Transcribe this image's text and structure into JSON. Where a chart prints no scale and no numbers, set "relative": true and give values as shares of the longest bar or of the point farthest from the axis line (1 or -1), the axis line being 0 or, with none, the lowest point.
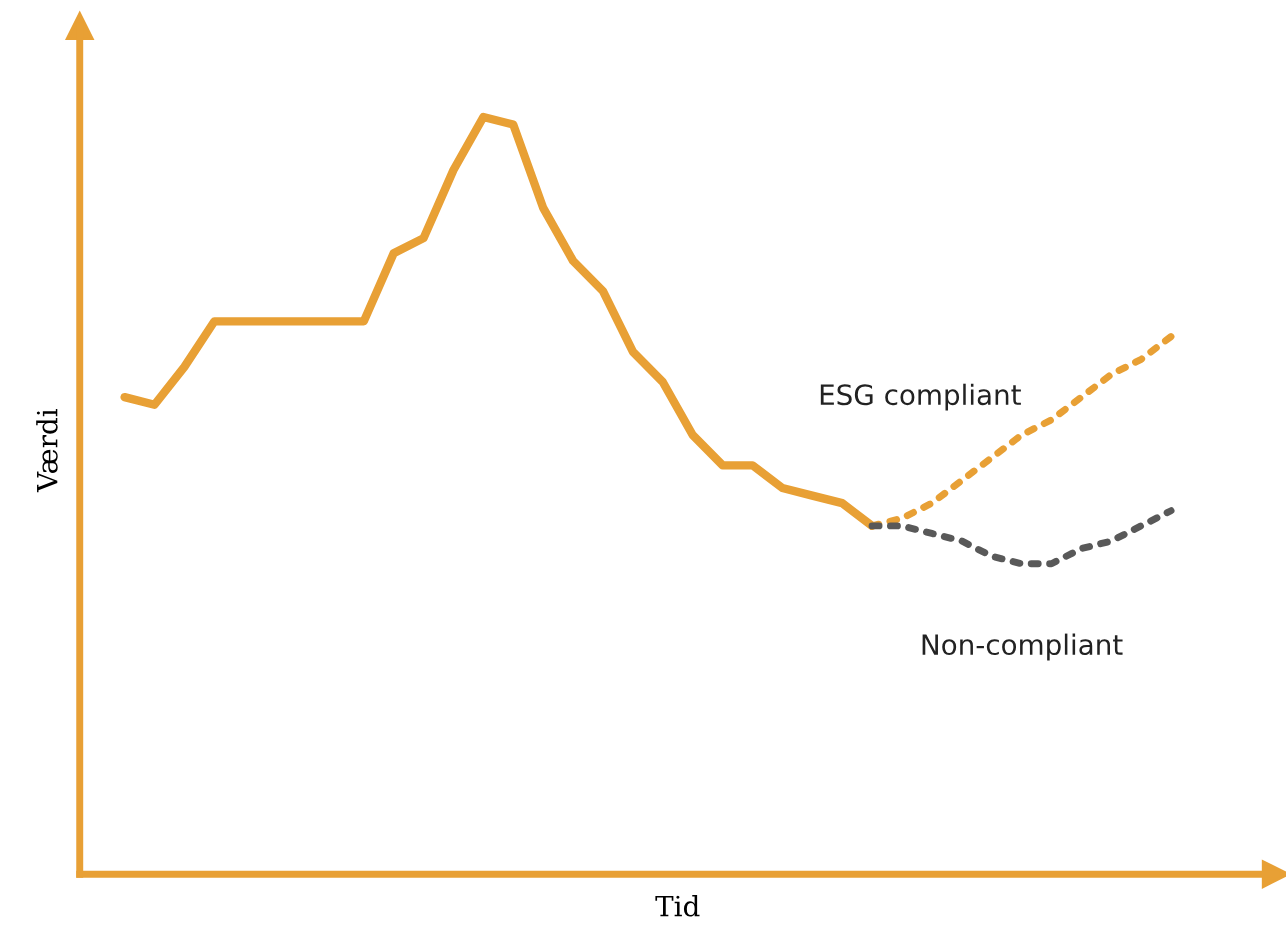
{
  "chart_data": {
    "type": "line",
    "relative": true,
    "xlabel": "Tid",
    "ylabel": "Værdi",
    "categories": [
      null,
      null,
      null,
      null,
      null,
      null,
      null,
      null,
      null,
      null,
      null,
      null,
      null,
      null,
      null,
      null,
      null,
      null,
      null,
      null,
      null,
      null,
      null,
      null,
      null,
      null,
      null,
      null,
      null,
      null,
      null,
      null,
      null,
      null,
      null,
      null
    ],
    "series": [
      {
        "color": "#e8a035",
        "line_style": "solid",
        "values": [
          0.63,
          0.62,
          0.67,
          0.73,
          0.73,
          0.73,
          0.73,
          0.73,
          0.73,
          0.82,
          0.84,
          0.93,
          1.0,
          0.99,
          0.88,
          0.81,
          0.77,
          0.69,
          0.65,
          0.58,
          0.54,
          0.54,
          0.51,
          0.5,
          0.49,
          0.46,
          null,
          null,
          null,
          null,
          null,
          null,
          null,
          null,
          null,
          null
        ]
      },
      {
        "name": "ESG compliant",
        "color": "#e8a035",
        "line_style": "dotted",
        "values": [
          null,
          null,
          null,
          null,
          null,
          null,
          null,
          null,
          null,
          null,
          null,
          null,
          null,
          null,
          null,
          null,
          null,
          null,
          null,
          null,
          null,
          null,
          null,
          null,
          null,
          0.46,
          0.47,
          0.49,
          0.52,
          0.55,
          0.58,
          0.6,
          0.63,
          0.66,
          0.68,
          0.71
        ]
      },
      {
        "name": "Non-compliant",
        "color": "#595959",
        "line_style": "dotted",
        "values": [
          null,
          null,
          null,
          null,
          null,
          null,
          null,
          null,
          null,
          null,
          null,
          null,
          null,
          null,
          null,
          null,
          null,
          null,
          null,
          null,
          null,
          null,
          null,
          null,
          null,
          0.46,
          0.46,
          0.45,
          0.44,
          0.42,
          0.41,
          0.41,
          0.43,
          0.44,
          0.46,
          0.48
        ]
      }
    ]
  }
}
